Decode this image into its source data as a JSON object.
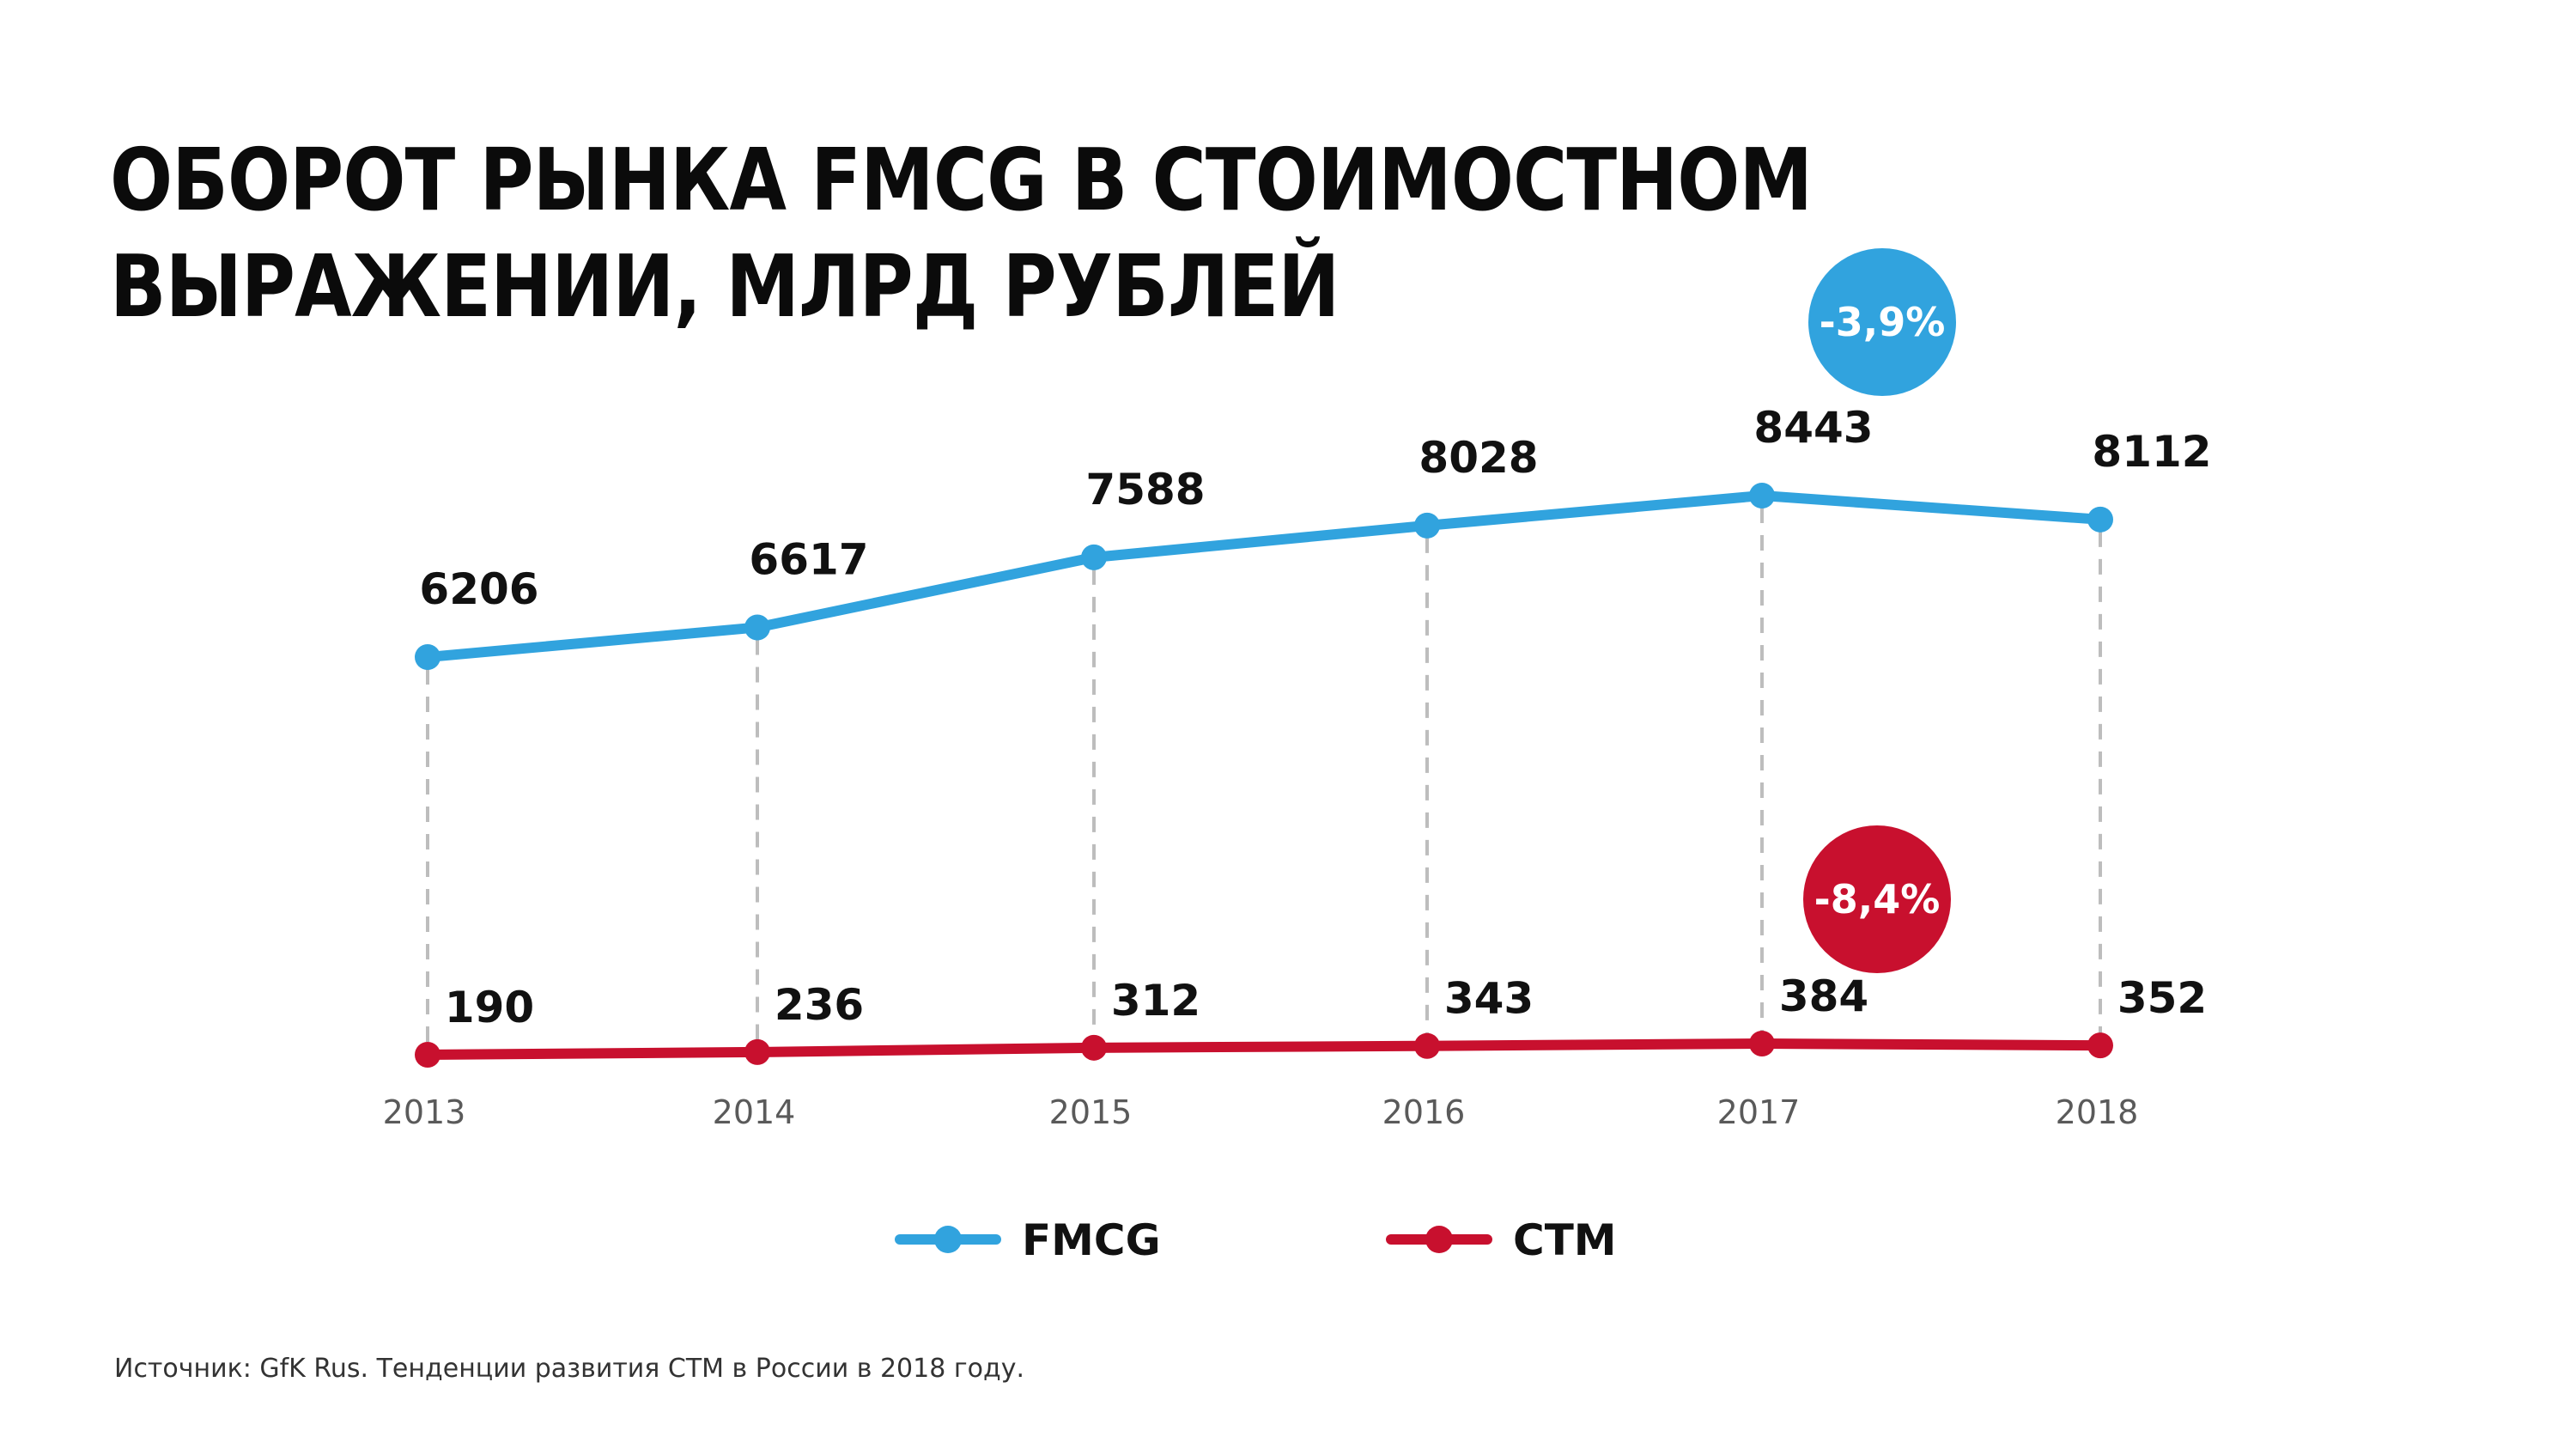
{
  "title": {
    "line1": "ОБОРОТ РЫНКА FMCG В СТОИМОСТНОМ",
    "line2": "ВЫРАЖЕНИИ, МЛРД РУБЛЕЙ"
  },
  "source": "Источник: GfK Rus. Тенденции развития СТМ в России в 2018 году.",
  "colors": {
    "fmcg": "#31a3de",
    "stm": "#c8102e",
    "guide": "#bdbdbd"
  },
  "chart_data": {
    "type": "line",
    "categories": [
      "2013",
      "2014",
      "2015",
      "2016",
      "2017",
      "2018"
    ],
    "series": [
      {
        "name": "FMCG",
        "values": [
          6206,
          6617,
          7588,
          8028,
          8443,
          8112
        ]
      },
      {
        "name": "СТМ",
        "values": [
          190,
          236,
          312,
          343,
          384,
          352
        ]
      }
    ],
    "annotations": [
      {
        "series": "FMCG",
        "text": "-3,9%"
      },
      {
        "series": "СТМ",
        "text": "-8,4%"
      }
    ],
    "legend": "bottom-center",
    "grid": false,
    "xlabel": "",
    "ylabel": ""
  }
}
